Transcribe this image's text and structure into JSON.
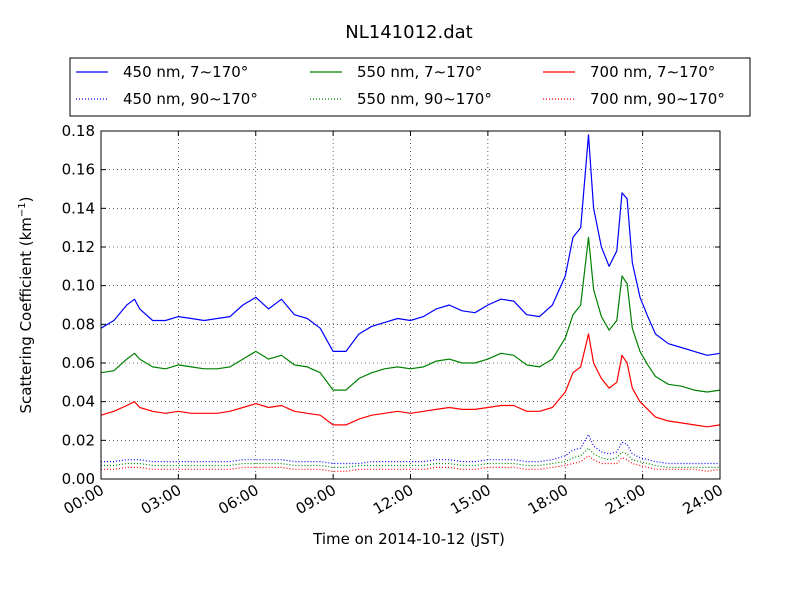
{
  "chart_data": {
    "type": "line",
    "title": "NL141012.dat",
    "xlabel": "Time on 2014-10-12 (JST)",
    "ylabel": "Scattering Coefficient (km",
    "ylabel_sup": "−1",
    "ylabel_end": ")",
    "xlim": [
      0,
      24
    ],
    "ylim": [
      0,
      0.18
    ],
    "grid": true,
    "legend_position": "top (above plot)",
    "x_ticks": [
      0,
      3,
      6,
      9,
      12,
      15,
      18,
      21,
      24
    ],
    "x_tick_labels": [
      "00:00",
      "03:00",
      "06:00",
      "09:00",
      "12:00",
      "15:00",
      "18:00",
      "21:00",
      "24:00"
    ],
    "y_ticks": [
      0,
      0.02,
      0.04,
      0.06,
      0.08,
      0.1,
      0.12,
      0.14,
      0.16,
      0.18
    ],
    "y_tick_labels": [
      "0.00",
      "0.02",
      "0.04",
      "0.06",
      "0.08",
      "0.10",
      "0.12",
      "0.14",
      "0.16",
      "0.18"
    ],
    "x": [
      0,
      0.5,
      1.0,
      1.3,
      1.5,
      2.0,
      2.5,
      3.0,
      3.5,
      4.0,
      4.5,
      5.0,
      5.5,
      6.0,
      6.5,
      7.0,
      7.5,
      8.0,
      8.5,
      9.0,
      9.5,
      10.0,
      10.5,
      11.0,
      11.5,
      12.0,
      12.5,
      13.0,
      13.5,
      14.0,
      14.5,
      15.0,
      15.5,
      16.0,
      16.5,
      17.0,
      17.5,
      18.0,
      18.3,
      18.6,
      18.9,
      19.1,
      19.4,
      19.7,
      20.0,
      20.2,
      20.4,
      20.6,
      20.9,
      21.2,
      21.5,
      22.0,
      22.5,
      23.0,
      23.5,
      24.0
    ],
    "series": [
      {
        "name": "450 nm, 7∼170°",
        "color": "#0000ff",
        "style": "solid",
        "values": [
          0.078,
          0.082,
          0.09,
          0.093,
          0.088,
          0.082,
          0.082,
          0.084,
          0.083,
          0.082,
          0.083,
          0.084,
          0.09,
          0.094,
          0.088,
          0.093,
          0.085,
          0.083,
          0.078,
          0.066,
          0.066,
          0.075,
          0.079,
          0.081,
          0.083,
          0.082,
          0.084,
          0.088,
          0.09,
          0.087,
          0.086,
          0.09,
          0.093,
          0.092,
          0.085,
          0.084,
          0.09,
          0.105,
          0.125,
          0.13,
          0.178,
          0.14,
          0.12,
          0.11,
          0.118,
          0.148,
          0.145,
          0.112,
          0.094,
          0.084,
          0.075,
          0.07,
          0.068,
          0.066,
          0.064,
          0.065
        ]
      },
      {
        "name": "550 nm, 7∼170°",
        "color": "#008000",
        "style": "solid",
        "values": [
          0.055,
          0.056,
          0.062,
          0.065,
          0.062,
          0.058,
          0.057,
          0.059,
          0.058,
          0.057,
          0.057,
          0.058,
          0.062,
          0.066,
          0.062,
          0.064,
          0.059,
          0.058,
          0.055,
          0.046,
          0.046,
          0.052,
          0.055,
          0.057,
          0.058,
          0.057,
          0.058,
          0.061,
          0.062,
          0.06,
          0.06,
          0.062,
          0.065,
          0.064,
          0.059,
          0.058,
          0.062,
          0.073,
          0.085,
          0.09,
          0.125,
          0.098,
          0.084,
          0.077,
          0.082,
          0.105,
          0.101,
          0.078,
          0.066,
          0.059,
          0.053,
          0.049,
          0.048,
          0.046,
          0.045,
          0.046
        ]
      },
      {
        "name": "700 nm, 7∼170°",
        "color": "#ff0000",
        "style": "solid",
        "values": [
          0.033,
          0.035,
          0.038,
          0.04,
          0.037,
          0.035,
          0.034,
          0.035,
          0.034,
          0.034,
          0.034,
          0.035,
          0.037,
          0.039,
          0.037,
          0.038,
          0.035,
          0.034,
          0.033,
          0.028,
          0.028,
          0.031,
          0.033,
          0.034,
          0.035,
          0.034,
          0.035,
          0.036,
          0.037,
          0.036,
          0.036,
          0.037,
          0.038,
          0.038,
          0.035,
          0.035,
          0.037,
          0.045,
          0.055,
          0.058,
          0.075,
          0.06,
          0.052,
          0.047,
          0.05,
          0.064,
          0.06,
          0.047,
          0.04,
          0.036,
          0.032,
          0.03,
          0.029,
          0.028,
          0.027,
          0.028
        ]
      },
      {
        "name": "450 nm, 90∼170°",
        "color": "#0000ff",
        "style": "dotted",
        "values": [
          0.009,
          0.009,
          0.01,
          0.01,
          0.01,
          0.009,
          0.009,
          0.009,
          0.009,
          0.009,
          0.009,
          0.009,
          0.01,
          0.01,
          0.01,
          0.01,
          0.009,
          0.009,
          0.009,
          0.008,
          0.008,
          0.008,
          0.009,
          0.009,
          0.009,
          0.009,
          0.009,
          0.01,
          0.01,
          0.009,
          0.009,
          0.01,
          0.01,
          0.01,
          0.009,
          0.009,
          0.01,
          0.012,
          0.015,
          0.016,
          0.023,
          0.017,
          0.014,
          0.013,
          0.014,
          0.019,
          0.018,
          0.013,
          0.011,
          0.01,
          0.009,
          0.008,
          0.008,
          0.008,
          0.008,
          0.008
        ]
      },
      {
        "name": "550 nm, 90∼170°",
        "color": "#008000",
        "style": "dotted",
        "values": [
          0.007,
          0.007,
          0.008,
          0.008,
          0.008,
          0.007,
          0.007,
          0.007,
          0.007,
          0.007,
          0.007,
          0.007,
          0.008,
          0.008,
          0.008,
          0.008,
          0.007,
          0.007,
          0.007,
          0.006,
          0.006,
          0.007,
          0.007,
          0.007,
          0.007,
          0.007,
          0.007,
          0.008,
          0.008,
          0.007,
          0.007,
          0.008,
          0.008,
          0.008,
          0.007,
          0.007,
          0.008,
          0.009,
          0.011,
          0.012,
          0.016,
          0.013,
          0.011,
          0.01,
          0.011,
          0.014,
          0.013,
          0.01,
          0.009,
          0.008,
          0.007,
          0.006,
          0.006,
          0.006,
          0.006,
          0.006
        ]
      },
      {
        "name": "700 nm, 90∼170°",
        "color": "#ff0000",
        "style": "dotted",
        "values": [
          0.005,
          0.005,
          0.006,
          0.006,
          0.006,
          0.005,
          0.005,
          0.005,
          0.005,
          0.005,
          0.005,
          0.005,
          0.006,
          0.006,
          0.006,
          0.006,
          0.005,
          0.005,
          0.005,
          0.004,
          0.004,
          0.005,
          0.005,
          0.005,
          0.005,
          0.005,
          0.005,
          0.006,
          0.006,
          0.005,
          0.005,
          0.006,
          0.006,
          0.006,
          0.005,
          0.005,
          0.006,
          0.007,
          0.008,
          0.009,
          0.012,
          0.01,
          0.008,
          0.008,
          0.008,
          0.011,
          0.01,
          0.008,
          0.007,
          0.006,
          0.005,
          0.005,
          0.005,
          0.005,
          0.004,
          0.005
        ]
      }
    ],
    "legend_order": [
      0,
      3,
      1,
      4,
      2,
      5
    ]
  }
}
